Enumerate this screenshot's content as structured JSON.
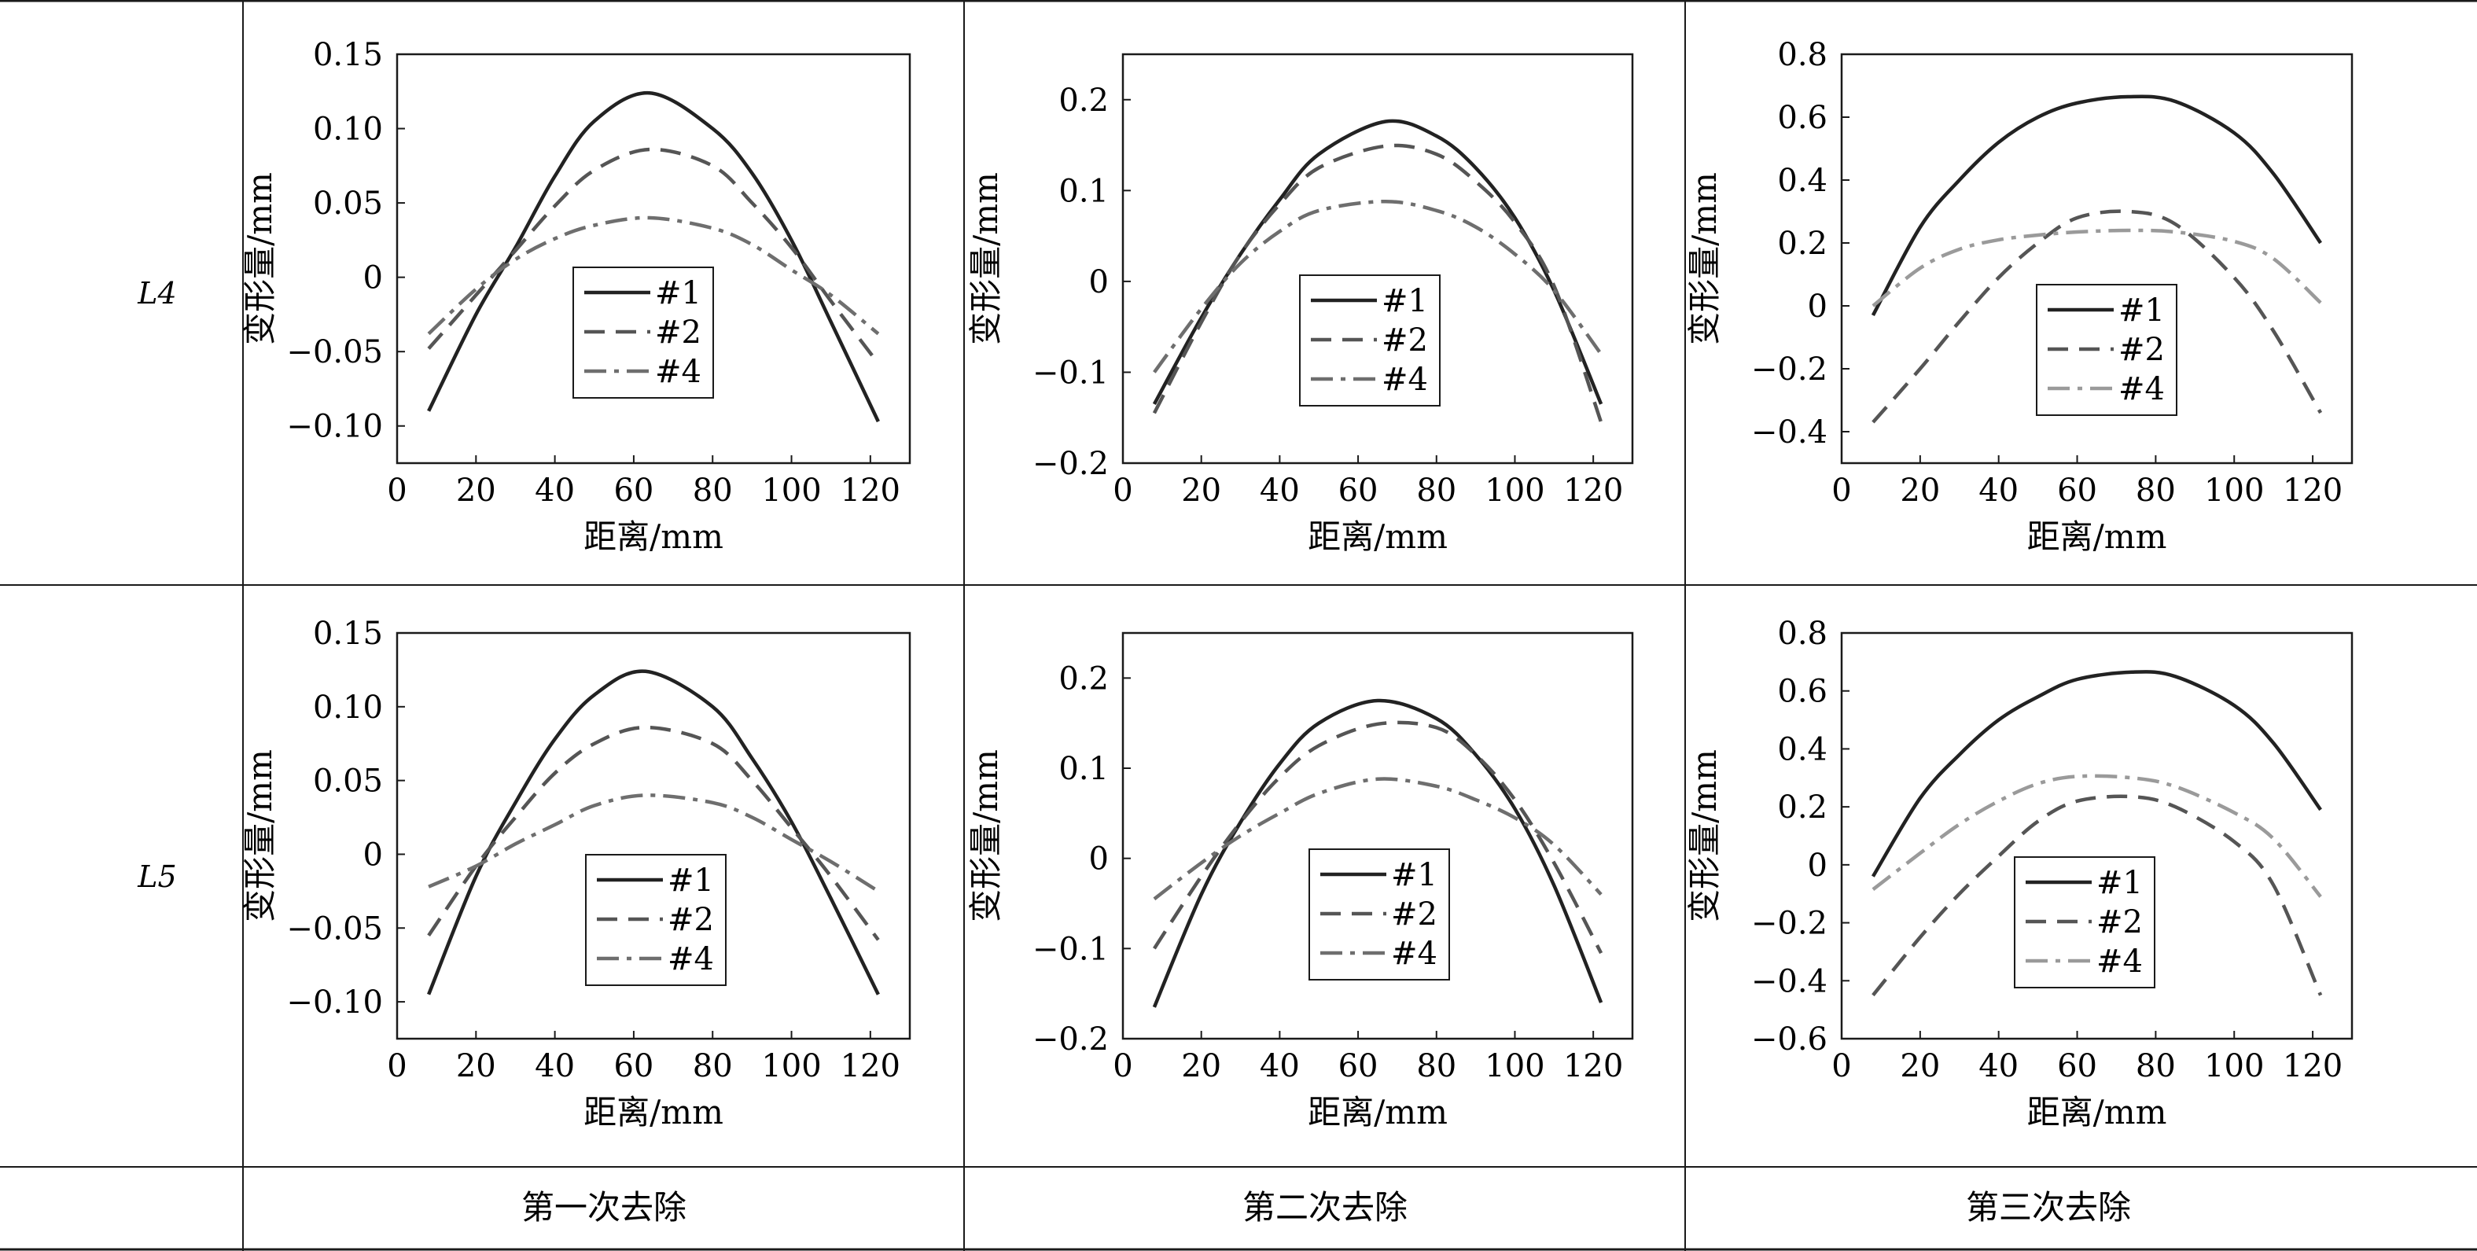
{
  "table": {
    "row_labels": [
      "L4",
      "L5"
    ],
    "column_labels": [
      "第一次去除",
      "第二次去除",
      "第三次去除"
    ]
  },
  "legend_entries": [
    "#1",
    "#2",
    "#4"
  ],
  "series_styles": {
    "#1": {
      "color": "#222222",
      "dash": "none"
    },
    "#2": {
      "color": "#555555",
      "dash": "dashed"
    },
    "#4": {
      "color": "#6e6e6e",
      "dash": "dash-dot"
    }
  },
  "series_styles_panel_3_4": {
    "#1": {
      "color": "#222222",
      "dash": "none"
    },
    "#2": {
      "color": "#555555",
      "dash": "dashed"
    },
    "#4": {
      "color": "#9a9a9a",
      "dash": "dash-dot"
    }
  },
  "chart_data": [
    {
      "type": "line",
      "row": "L4",
      "column": "第一次去除",
      "xlabel": "距离/mm",
      "ylabel": "变形量/mm",
      "xlim": [
        0,
        130
      ],
      "ylim": [
        -0.125,
        0.15
      ],
      "xticks": [
        "0",
        "20",
        "40",
        "60",
        "80",
        "100",
        "120"
      ],
      "yticks": [
        "0.15",
        "0.10",
        "0.05",
        "0",
        "−0.05",
        "−0.10"
      ],
      "x": [
        8,
        20,
        30,
        40,
        50,
        64,
        80,
        90,
        100,
        110,
        122
      ],
      "series": [
        {
          "name": "#1",
          "values": [
            -0.09,
            -0.025,
            0.02,
            0.068,
            0.105,
            0.124,
            0.1,
            0.07,
            0.025,
            -0.03,
            -0.097
          ]
        },
        {
          "name": "#2",
          "values": [
            -0.048,
            -0.012,
            0.018,
            0.048,
            0.072,
            0.086,
            0.075,
            0.05,
            0.02,
            -0.016,
            -0.058
          ]
        },
        {
          "name": "#4",
          "values": [
            -0.038,
            -0.008,
            0.012,
            0.026,
            0.035,
            0.04,
            0.033,
            0.022,
            0.005,
            -0.012,
            -0.038
          ]
        }
      ]
    },
    {
      "type": "line",
      "row": "L4",
      "column": "第二次去除",
      "xlabel": "距离/mm",
      "ylabel": "变形量/mm",
      "xlim": [
        0,
        130
      ],
      "ylim": [
        -0.2,
        0.25
      ],
      "xticks": [
        "0",
        "20",
        "40",
        "60",
        "80",
        "100",
        "120"
      ],
      "yticks": [
        "0.2",
        "0.1",
        "0",
        "−0.1",
        "−0.2"
      ],
      "x": [
        8,
        20,
        30,
        40,
        50,
        67,
        80,
        90,
        100,
        110,
        122
      ],
      "series": [
        {
          "name": "#1",
          "values": [
            -0.135,
            -0.04,
            0.03,
            0.09,
            0.14,
            0.176,
            0.16,
            0.125,
            0.07,
            -0.01,
            -0.135
          ]
        },
        {
          "name": "#2",
          "values": [
            -0.145,
            -0.045,
            0.03,
            0.085,
            0.125,
            0.149,
            0.14,
            0.11,
            0.065,
            -0.005,
            -0.155
          ]
        },
        {
          "name": "#4",
          "values": [
            -0.1,
            -0.03,
            0.02,
            0.055,
            0.078,
            0.088,
            0.078,
            0.06,
            0.03,
            -0.01,
            -0.08
          ]
        }
      ]
    },
    {
      "type": "line",
      "row": "L4",
      "column": "第三次去除",
      "xlabel": "距离/mm",
      "ylabel": "变形量/mm",
      "xlim": [
        0,
        130
      ],
      "ylim": [
        -0.5,
        0.8
      ],
      "xticks": [
        "0",
        "20",
        "40",
        "60",
        "80",
        "100",
        "120"
      ],
      "yticks": [
        "0.8",
        "0.6",
        "0.4",
        "0.2",
        "0",
        "−0.2",
        "−0.4"
      ],
      "x": [
        8,
        20,
        30,
        40,
        50,
        60,
        73,
        85,
        100,
        110,
        122
      ],
      "series": [
        {
          "name": "#1",
          "values": [
            -0.03,
            0.25,
            0.4,
            0.52,
            0.6,
            0.645,
            0.665,
            0.65,
            0.55,
            0.42,
            0.2
          ]
        },
        {
          "name": "#2",
          "values": [
            -0.37,
            -0.2,
            -0.05,
            0.09,
            0.2,
            0.28,
            0.3,
            0.26,
            0.09,
            -0.08,
            -0.34
          ]
        },
        {
          "name": "#4",
          "values": [
            0.0,
            0.12,
            0.18,
            0.21,
            0.225,
            0.235,
            0.24,
            0.235,
            0.205,
            0.15,
            0.01
          ]
        }
      ]
    },
    {
      "type": "line",
      "row": "L5",
      "column": "第一次去除",
      "xlabel": "距离/mm",
      "ylabel": "变形量/mm",
      "xlim": [
        0,
        130
      ],
      "ylim": [
        -0.125,
        0.15
      ],
      "xticks": [
        "0",
        "20",
        "40",
        "60",
        "80",
        "100",
        "120"
      ],
      "yticks": [
        "0.15",
        "0.10",
        "0.05",
        "0",
        "−0.05",
        "−0.10"
      ],
      "x": [
        8,
        20,
        30,
        40,
        50,
        63,
        80,
        90,
        100,
        110,
        122
      ],
      "series": [
        {
          "name": "#1",
          "values": [
            -0.095,
            -0.015,
            0.035,
            0.078,
            0.108,
            0.124,
            0.1,
            0.065,
            0.022,
            -0.03,
            -0.095
          ]
        },
        {
          "name": "#2",
          "values": [
            -0.055,
            -0.008,
            0.025,
            0.055,
            0.075,
            0.086,
            0.075,
            0.05,
            0.018,
            -0.015,
            -0.058
          ]
        },
        {
          "name": "#4",
          "values": [
            -0.022,
            -0.008,
            0.007,
            0.02,
            0.033,
            0.04,
            0.035,
            0.025,
            0.01,
            -0.005,
            -0.025
          ]
        }
      ]
    },
    {
      "type": "line",
      "row": "L5",
      "column": "第二次去除",
      "xlabel": "距离/mm",
      "ylabel": "变形量/mm",
      "xlim": [
        0,
        130
      ],
      "ylim": [
        -0.2,
        0.25
      ],
      "xticks": [
        "0",
        "20",
        "40",
        "60",
        "80",
        "100",
        "120"
      ],
      "yticks": [
        "0.2",
        "0.1",
        "0",
        "−0.1",
        "−0.2"
      ],
      "x": [
        8,
        20,
        30,
        40,
        50,
        65,
        80,
        90,
        100,
        110,
        122
      ],
      "series": [
        {
          "name": "#1",
          "values": [
            -0.165,
            -0.04,
            0.04,
            0.105,
            0.15,
            0.175,
            0.155,
            0.115,
            0.055,
            -0.03,
            -0.16
          ]
        },
        {
          "name": "#2",
          "values": [
            -0.1,
            -0.02,
            0.04,
            0.09,
            0.125,
            0.149,
            0.145,
            0.115,
            0.065,
            -0.005,
            -0.105
          ]
        },
        {
          "name": "#4",
          "values": [
            -0.045,
            -0.005,
            0.025,
            0.05,
            0.072,
            0.088,
            0.08,
            0.065,
            0.045,
            0.015,
            -0.04
          ]
        }
      ]
    },
    {
      "type": "line",
      "row": "L5",
      "column": "第三次去除",
      "xlabel": "距离/mm",
      "ylabel": "变形量/mm",
      "xlim": [
        0,
        130
      ],
      "ylim": [
        -0.6,
        0.8
      ],
      "xticks": [
        "0",
        "20",
        "40",
        "60",
        "80",
        "100",
        "120"
      ],
      "yticks": [
        "0.8",
        "0.6",
        "0.4",
        "0.2",
        "0",
        "−0.2",
        "−0.4",
        "−0.6"
      ],
      "x": [
        8,
        20,
        30,
        40,
        50,
        60,
        74,
        85,
        100,
        110,
        122
      ],
      "series": [
        {
          "name": "#1",
          "values": [
            -0.04,
            0.23,
            0.38,
            0.5,
            0.58,
            0.64,
            0.665,
            0.65,
            0.55,
            0.42,
            0.19
          ]
        },
        {
          "name": "#2",
          "values": [
            -0.45,
            -0.25,
            -0.1,
            0.03,
            0.15,
            0.22,
            0.235,
            0.2,
            0.08,
            -0.07,
            -0.45
          ]
        },
        {
          "name": "#4",
          "values": [
            -0.085,
            0.04,
            0.14,
            0.22,
            0.28,
            0.305,
            0.3,
            0.27,
            0.18,
            0.09,
            -0.11
          ]
        }
      ]
    }
  ]
}
